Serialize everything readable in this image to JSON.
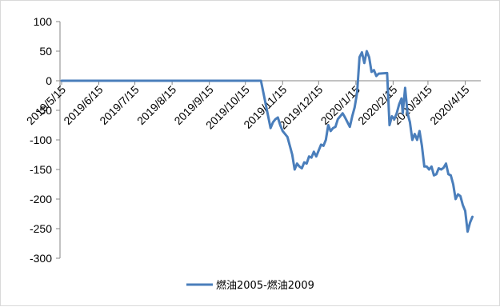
{
  "chart_data": {
    "type": "line",
    "title": "",
    "xlabel": "",
    "ylabel": "",
    "ylim": [
      -300,
      100
    ],
    "yticks": [
      100,
      50,
      0,
      -50,
      -100,
      -150,
      -200,
      -250,
      -300
    ],
    "xtick_labels": [
      "2019/5/15",
      "2019/6/15",
      "2019/7/15",
      "2019/8/15",
      "2019/9/15",
      "2019/10/15",
      "2019/11/15",
      "2019/12/15",
      "2020/1/15",
      "2020/2/15",
      "2020/3/15",
      "2020/4/15"
    ],
    "xrange": [
      "2019-05-15",
      "2020-04-28"
    ],
    "grid": false,
    "legend_position": "bottom",
    "series": [
      {
        "name": "燃油2005-燃油2009",
        "color": "#4a7ebb",
        "points": [
          [
            "2019-05-15",
            0
          ],
          [
            "2019-10-28",
            0
          ],
          [
            "2019-11-05",
            -80
          ],
          [
            "2019-11-07",
            -70
          ],
          [
            "2019-11-09",
            -65
          ],
          [
            "2019-11-11",
            -62
          ],
          [
            "2019-11-13",
            -75
          ],
          [
            "2019-11-15",
            -85
          ],
          [
            "2019-11-17",
            -90
          ],
          [
            "2019-11-19",
            -95
          ],
          [
            "2019-11-21",
            -110
          ],
          [
            "2019-11-23",
            -125
          ],
          [
            "2019-11-25",
            -150
          ],
          [
            "2019-11-27",
            -140
          ],
          [
            "2019-11-29",
            -145
          ],
          [
            "2019-12-01",
            -148
          ],
          [
            "2019-12-03",
            -138
          ],
          [
            "2019-12-05",
            -140
          ],
          [
            "2019-12-07",
            -128
          ],
          [
            "2019-12-09",
            -130
          ],
          [
            "2019-12-11",
            -120
          ],
          [
            "2019-12-13",
            -128
          ],
          [
            "2019-12-15",
            -118
          ],
          [
            "2019-12-17",
            -108
          ],
          [
            "2019-12-19",
            -110
          ],
          [
            "2019-12-21",
            -100
          ],
          [
            "2019-12-23",
            -75
          ],
          [
            "2019-12-25",
            -85
          ],
          [
            "2019-12-27",
            -80
          ],
          [
            "2019-12-29",
            -78
          ],
          [
            "2019-12-31",
            -65
          ],
          [
            "2020-01-02",
            -60
          ],
          [
            "2020-01-04",
            -55
          ],
          [
            "2020-01-06",
            -62
          ],
          [
            "2020-01-08",
            -70
          ],
          [
            "2020-01-10",
            -78
          ],
          [
            "2020-01-12",
            -60
          ],
          [
            "2020-01-14",
            -45
          ],
          [
            "2020-01-16",
            -20
          ],
          [
            "2020-01-18",
            40
          ],
          [
            "2020-01-20",
            48
          ],
          [
            "2020-01-22",
            30
          ],
          [
            "2020-01-24",
            50
          ],
          [
            "2020-01-26",
            40
          ],
          [
            "2020-01-28",
            15
          ],
          [
            "2020-01-30",
            18
          ],
          [
            "2020-02-01",
            8
          ],
          [
            "2020-02-03",
            12
          ],
          [
            "2020-02-10",
            13
          ],
          [
            "2020-02-12",
            -75
          ],
          [
            "2020-02-14",
            -60
          ],
          [
            "2020-02-16",
            -65
          ],
          [
            "2020-02-18",
            -55
          ],
          [
            "2020-02-20",
            -40
          ],
          [
            "2020-02-22",
            -30
          ],
          [
            "2020-02-23",
            -55
          ],
          [
            "2020-02-25",
            -12
          ],
          [
            "2020-02-27",
            -55
          ],
          [
            "2020-02-29",
            -70
          ],
          [
            "2020-03-02",
            -100
          ],
          [
            "2020-03-04",
            -90
          ],
          [
            "2020-03-06",
            -100
          ],
          [
            "2020-03-08",
            -85
          ],
          [
            "2020-03-10",
            -110
          ],
          [
            "2020-03-12",
            -145
          ],
          [
            "2020-03-14",
            -145
          ],
          [
            "2020-03-16",
            -150
          ],
          [
            "2020-03-18",
            -145
          ],
          [
            "2020-03-20",
            -160
          ],
          [
            "2020-03-22",
            -158
          ],
          [
            "2020-03-24",
            -148
          ],
          [
            "2020-03-26",
            -150
          ],
          [
            "2020-03-28",
            -147
          ],
          [
            "2020-03-30",
            -140
          ],
          [
            "2020-04-01",
            -158
          ],
          [
            "2020-04-03",
            -160
          ],
          [
            "2020-04-05",
            -175
          ],
          [
            "2020-04-07",
            -200
          ],
          [
            "2020-04-09",
            -192
          ],
          [
            "2020-04-11",
            -195
          ],
          [
            "2020-04-13",
            -210
          ],
          [
            "2020-04-15",
            -220
          ],
          [
            "2020-04-17",
            -255
          ],
          [
            "2020-04-19",
            -240
          ],
          [
            "2020-04-21",
            -230
          ]
        ]
      }
    ]
  }
}
